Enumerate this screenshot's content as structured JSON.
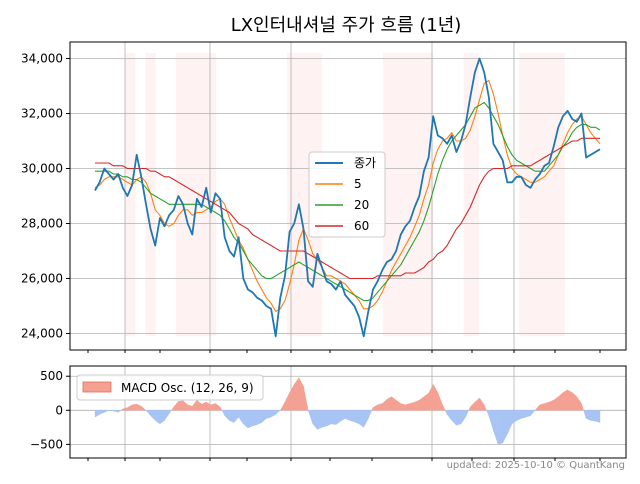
{
  "chart_data": [
    {
      "type": "line",
      "title": "LX인터내셔널 주가 흐름 (1년)",
      "xlabel": "",
      "ylabel": "",
      "ylim": [
        23400,
        34600
      ],
      "yticks": [
        24000,
        26000,
        28000,
        30000,
        32000,
        34000
      ],
      "ytick_labels": [
        "24,000",
        "26,000",
        "28,000",
        "30,000",
        "32,000",
        "34,000"
      ],
      "grid": true,
      "legend_position": "center",
      "shaded_regions": [
        [
          0.06,
          0.08
        ],
        [
          0.1,
          0.12
        ],
        [
          0.16,
          0.24
        ],
        [
          0.38,
          0.45
        ],
        [
          0.57,
          0.67
        ],
        [
          0.73,
          0.76
        ],
        [
          0.84,
          0.93
        ]
      ],
      "series": [
        {
          "name": "종가",
          "color": "#1f77b4",
          "values": [
            29200,
            29500,
            30000,
            29800,
            29600,
            29800,
            29300,
            29000,
            29400,
            30500,
            29700,
            28700,
            27800,
            27200,
            28200,
            27900,
            28300,
            28500,
            29000,
            28700,
            28000,
            27600,
            28900,
            28600,
            29300,
            28400,
            29100,
            28900,
            27500,
            27000,
            26800,
            27500,
            26000,
            25600,
            25500,
            25300,
            25200,
            25000,
            24900,
            23900,
            25300,
            26100,
            27700,
            28000,
            28700,
            27800,
            25900,
            25700,
            26900,
            26400,
            25900,
            25800,
            25600,
            25900,
            25400,
            25200,
            25000,
            24600,
            23900,
            24800,
            25600,
            25900,
            26300,
            26600,
            26700,
            27000,
            27600,
            27900,
            28100,
            28600,
            29000,
            29900,
            30400,
            31900,
            31200,
            31100,
            30900,
            31200,
            30600,
            31000,
            31600,
            32600,
            33500,
            34000,
            33500,
            32600,
            30900,
            30600,
            30300,
            29500,
            29500,
            29700,
            29700,
            29400,
            29300,
            29600,
            29800,
            30100,
            30200,
            30800,
            31500,
            31900,
            32100,
            31800,
            31700,
            32000,
            30400,
            30500,
            30600,
            30700
          ]
        },
        {
          "name": "5",
          "color": "#ff7f0e",
          "values": [
            29300,
            29400,
            29600,
            29700,
            29700,
            29700,
            29600,
            29500,
            29400,
            29600,
            29700,
            29500,
            29100,
            28500,
            28300,
            28000,
            27900,
            28000,
            28300,
            28500,
            28500,
            28300,
            28400,
            28400,
            28500,
            28600,
            28800,
            28900,
            28700,
            28200,
            27800,
            27400,
            27100,
            26700,
            26300,
            25900,
            25600,
            25300,
            25100,
            24800,
            24900,
            25200,
            25800,
            26500,
            27400,
            27800,
            27400,
            26900,
            26700,
            26400,
            26100,
            26100,
            26000,
            25900,
            25800,
            25600,
            25400,
            25200,
            24900,
            24900,
            25000,
            25200,
            25500,
            25900,
            26300,
            26600,
            26900,
            27200,
            27500,
            27900,
            28300,
            28900,
            29400,
            30200,
            30700,
            31000,
            31100,
            31300,
            31000,
            31000,
            31100,
            31400,
            31900,
            32500,
            33100,
            33200,
            32700,
            32000,
            31200,
            30500,
            30000,
            29800,
            29700,
            29600,
            29500,
            29500,
            29600,
            29700,
            29900,
            30100,
            30500,
            30900,
            31300,
            31600,
            31800,
            31900,
            31600,
            31300,
            31100,
            30900
          ]
        },
        {
          "name": "20",
          "color": "#2ca02c",
          "values": [
            29900,
            29900,
            29900,
            29900,
            29800,
            29800,
            29700,
            29700,
            29600,
            29600,
            29500,
            29300,
            29100,
            29000,
            28900,
            28800,
            28700,
            28700,
            28700,
            28700,
            28700,
            28700,
            28700,
            28700,
            28600,
            28500,
            28400,
            28300,
            28100,
            27800,
            27500,
            27300,
            27000,
            26700,
            26500,
            26300,
            26100,
            26000,
            26000,
            26100,
            26200,
            26300,
            26400,
            26500,
            26600,
            26500,
            26400,
            26300,
            26200,
            26100,
            26000,
            25900,
            25800,
            25700,
            25600,
            25500,
            25400,
            25300,
            25200,
            25200,
            25300,
            25500,
            25700,
            25900,
            26100,
            26300,
            26500,
            26800,
            27100,
            27400,
            27700,
            28100,
            28600,
            29200,
            29800,
            30300,
            30700,
            31000,
            31200,
            31400,
            31600,
            31900,
            32200,
            32300,
            32400,
            32200,
            31900,
            31600,
            31200,
            30800,
            30500,
            30300,
            30200,
            30100,
            30000,
            29900,
            29900,
            29900,
            30100,
            30300,
            30500,
            30800,
            31000,
            31300,
            31500,
            31600,
            31600,
            31500,
            31500,
            31400
          ]
        },
        {
          "name": "60",
          "color": "#d62728",
          "values": [
            30200,
            30200,
            30200,
            30200,
            30100,
            30100,
            30100,
            30000,
            30000,
            30000,
            30000,
            30000,
            29900,
            29900,
            29800,
            29700,
            29700,
            29600,
            29500,
            29400,
            29300,
            29200,
            29100,
            29000,
            28900,
            28800,
            28700,
            28600,
            28500,
            28400,
            28200,
            28000,
            27900,
            27800,
            27600,
            27500,
            27400,
            27300,
            27200,
            27100,
            27000,
            27000,
            27000,
            27000,
            27000,
            27000,
            26900,
            26800,
            26700,
            26600,
            26500,
            26400,
            26300,
            26200,
            26100,
            26000,
            26000,
            26000,
            26000,
            26000,
            26000,
            26100,
            26100,
            26100,
            26100,
            26100,
            26100,
            26200,
            26200,
            26200,
            26300,
            26400,
            26600,
            26700,
            26900,
            27000,
            27200,
            27500,
            27800,
            28000,
            28300,
            28600,
            29000,
            29400,
            29700,
            29900,
            30000,
            30000,
            30000,
            30000,
            30100,
            30100,
            30100,
            30100,
            30100,
            30200,
            30300,
            30400,
            30500,
            30600,
            30700,
            30800,
            30900,
            31000,
            31000,
            31100,
            31100,
            31100,
            31100,
            31100
          ]
        }
      ]
    },
    {
      "type": "area",
      "title": "",
      "xlabel": "",
      "ylabel": "",
      "ylim": [
        -700,
        650
      ],
      "yticks": [
        -500,
        0,
        500
      ],
      "ytick_labels": [
        "−500",
        "0",
        "500"
      ],
      "grid": true,
      "legend_position": "top-left",
      "positive_color": "#f4a092",
      "negative_color": "#a8c4f4",
      "series": [
        {
          "name": "MACD Osc. (12, 26, 9)",
          "color": "#f4a092",
          "values": [
            -100,
            -60,
            -30,
            0,
            -10,
            -30,
            20,
            40,
            80,
            90,
            60,
            0,
            -80,
            -150,
            -200,
            -150,
            -50,
            50,
            130,
            140,
            80,
            60,
            150,
            90,
            120,
            80,
            100,
            50,
            -80,
            -150,
            -180,
            -100,
            -200,
            -260,
            -230,
            -210,
            -180,
            -120,
            -100,
            -60,
            0,
            120,
            260,
            380,
            480,
            350,
            0,
            -200,
            -280,
            -250,
            -230,
            -200,
            -210,
            -160,
            -120,
            -150,
            -170,
            -200,
            -250,
            -120,
            40,
            80,
            100,
            160,
            200,
            150,
            100,
            80,
            100,
            120,
            150,
            200,
            250,
            380,
            260,
            80,
            -60,
            -150,
            -220,
            -200,
            -100,
            50,
            120,
            180,
            80,
            -80,
            -300,
            -500,
            -480,
            -350,
            -200,
            -150,
            -120,
            -100,
            -80,
            0,
            80,
            100,
            120,
            150,
            200,
            260,
            300,
            260,
            200,
            100,
            -120,
            -150,
            -160,
            -180
          ]
        }
      ]
    }
  ],
  "footer": {
    "updated_text": "updated: 2025-10-10 © QuantKang"
  }
}
